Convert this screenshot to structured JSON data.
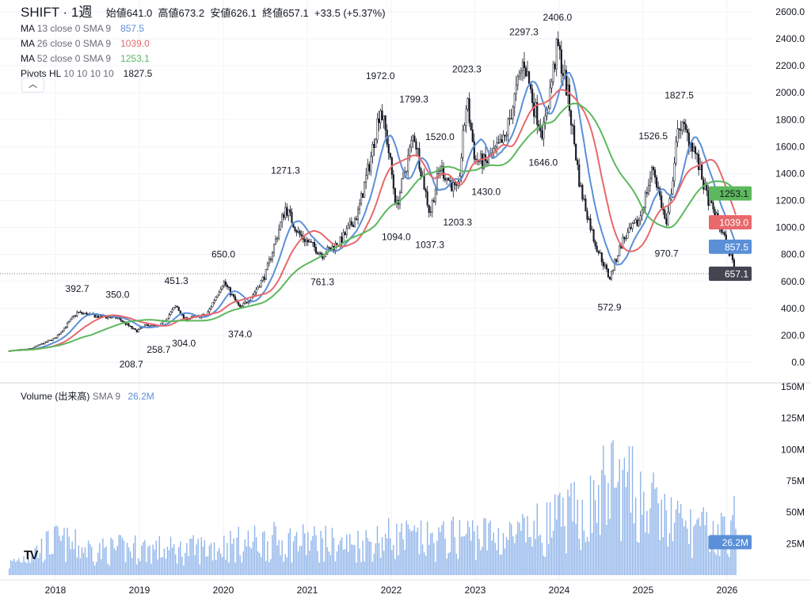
{
  "header": {
    "symbol": "SHIFT",
    "interval": "1週",
    "open_label": "始値",
    "open": "641.0",
    "high_label": "高値",
    "high": "673.2",
    "low_label": "安値",
    "low": "626.1",
    "close_label": "終値",
    "close": "657.1",
    "change": "+33.5 (+5.37%)"
  },
  "indicators": [
    {
      "name": "MA",
      "params": "13 close 0 SMA 9",
      "value": "857.5",
      "color": "#5b8fd8"
    },
    {
      "name": "MA",
      "params": "26 close 0 SMA 9",
      "value": "1039.0",
      "color": "#e8686b"
    },
    {
      "name": "MA",
      "params": "52 close 0 SMA 9",
      "value": "1253.1",
      "color": "#5cb85c"
    },
    {
      "name": "Pivots HL",
      "params": "10 10 10 10",
      "value": "1827.5",
      "color": "#131722"
    }
  ],
  "collapse_icon": "chevron-up-icon",
  "volume_legend": {
    "name": "Volume",
    "params": "(出来高)",
    "sma": "SMA 9",
    "value": "26.2M"
  },
  "logo": "TV",
  "chart_data": {
    "type": "candlestick",
    "price_axis": {
      "ticks": [
        "0.0",
        "200.0",
        "400.0",
        "600.0",
        "800.0",
        "1000.0",
        "1200.0",
        "1400.0",
        "1600.0",
        "1800.0",
        "2000.0",
        "2200.0",
        "2400.0",
        "2600.0"
      ],
      "range": [
        0,
        2600
      ]
    },
    "volume_axis": {
      "ticks": [
        "25M",
        "50M",
        "75M",
        "100M",
        "125M",
        "150M"
      ],
      "range": [
        0,
        150
      ]
    },
    "time_axis": [
      "2018",
      "2019",
      "2020",
      "2021",
      "2022",
      "2023",
      "2024",
      "2025",
      "2026"
    ],
    "last_price": "657.1",
    "badges": [
      {
        "value": "1253.1",
        "color": "#5cb85c"
      },
      {
        "value": "1039.0",
        "color": "#e8686b"
      },
      {
        "value": "857.5",
        "color": "#5b8fd8"
      },
      {
        "value": "657.1",
        "color": "#434651"
      },
      {
        "value": "26.2M",
        "color": "#5b8fd8"
      }
    ],
    "close_path": [
      [
        2017.45,
        85
      ],
      [
        2017.7,
        100
      ],
      [
        2018.0,
        180
      ],
      [
        2018.26,
        370
      ],
      [
        2018.5,
        340
      ],
      [
        2018.74,
        330
      ],
      [
        2018.96,
        230
      ],
      [
        2019.1,
        280
      ],
      [
        2019.23,
        260
      ],
      [
        2019.44,
        420
      ],
      [
        2019.53,
        320
      ],
      [
        2019.8,
        350
      ],
      [
        2020.0,
        600
      ],
      [
        2020.2,
        400
      ],
      [
        2020.35,
        500
      ],
      [
        2020.5,
        650
      ],
      [
        2020.74,
        1150
      ],
      [
        2020.9,
        950
      ],
      [
        2021.18,
        800
      ],
      [
        2021.4,
        900
      ],
      [
        2021.6,
        1100
      ],
      [
        2021.75,
        1500
      ],
      [
        2021.87,
        1900
      ],
      [
        2021.95,
        1650
      ],
      [
        2022.06,
        1150
      ],
      [
        2022.27,
        1700
      ],
      [
        2022.46,
        1100
      ],
      [
        2022.58,
        1450
      ],
      [
        2022.79,
        1250
      ],
      [
        2022.9,
        1950
      ],
      [
        2023.0,
        1500
      ],
      [
        2023.13,
        1480
      ],
      [
        2023.35,
        1650
      ],
      [
        2023.58,
        2250
      ],
      [
        2023.7,
        1900
      ],
      [
        2023.81,
        1700
      ],
      [
        2023.98,
        2350
      ],
      [
        2024.1,
        2000
      ],
      [
        2024.25,
        1300
      ],
      [
        2024.42,
        900
      ],
      [
        2024.6,
        620
      ],
      [
        2024.75,
        900
      ],
      [
        2024.95,
        1050
      ],
      [
        2025.12,
        1450
      ],
      [
        2025.28,
        1000
      ],
      [
        2025.43,
        1780
      ],
      [
        2025.6,
        1600
      ],
      [
        2025.75,
        1250
      ],
      [
        2025.95,
        950
      ],
      [
        2026.12,
        657
      ]
    ],
    "volume_path_m": [
      [
        2017.45,
        8
      ],
      [
        2018.0,
        25
      ],
      [
        2018.5,
        18
      ],
      [
        2019.0,
        20
      ],
      [
        2019.5,
        18
      ],
      [
        2020.0,
        22
      ],
      [
        2020.5,
        25
      ],
      [
        2021.0,
        25
      ],
      [
        2021.5,
        22
      ],
      [
        2022.0,
        28
      ],
      [
        2022.5,
        25
      ],
      [
        2022.9,
        30
      ],
      [
        2023.5,
        28
      ],
      [
        2024.0,
        40
      ],
      [
        2024.4,
        50
      ],
      [
        2024.6,
        70
      ],
      [
        2024.9,
        60
      ],
      [
        2025.2,
        45
      ],
      [
        2025.5,
        35
      ],
      [
        2025.9,
        30
      ],
      [
        2026.12,
        40
      ]
    ],
    "pivots": [
      {
        "label": "392.7",
        "date": 2018.26,
        "price": 392.7,
        "type": "high"
      },
      {
        "label": "350.0",
        "date": 2018.74,
        "price": 350.0,
        "type": "high"
      },
      {
        "label": "208.7",
        "date": 2018.96,
        "price": 208.7,
        "type": "low"
      },
      {
        "label": "258.7",
        "date": 2019.23,
        "price": 258.7,
        "type": "low"
      },
      {
        "label": "451.3",
        "date": 2019.44,
        "price": 451.3,
        "type": "high"
      },
      {
        "label": "304.0",
        "date": 2019.53,
        "price": 304.0,
        "type": "low"
      },
      {
        "label": "650.0",
        "date": 2020.0,
        "price": 650.0,
        "type": "high"
      },
      {
        "label": "374.0",
        "date": 2020.2,
        "price": 374.0,
        "type": "low"
      },
      {
        "label": "1271.3",
        "date": 2020.74,
        "price": 1271.3,
        "type": "high"
      },
      {
        "label": "761.3",
        "date": 2021.18,
        "price": 761.3,
        "type": "low"
      },
      {
        "label": "1972.0",
        "date": 2021.87,
        "price": 1972.0,
        "type": "high"
      },
      {
        "label": "1094.0",
        "date": 2022.06,
        "price": 1094.0,
        "type": "low"
      },
      {
        "label": "1799.3",
        "date": 2022.27,
        "price": 1799.3,
        "type": "high"
      },
      {
        "label": "1037.3",
        "date": 2022.46,
        "price": 1037.3,
        "type": "low"
      },
      {
        "label": "1520.0",
        "date": 2022.58,
        "price": 1520.0,
        "type": "high"
      },
      {
        "label": "1203.3",
        "date": 2022.79,
        "price": 1203.3,
        "type": "low"
      },
      {
        "label": "2023.3",
        "date": 2022.9,
        "price": 2023.3,
        "type": "high"
      },
      {
        "label": "1430.0",
        "date": 2023.13,
        "price": 1430.0,
        "type": "low"
      },
      {
        "label": "2297.3",
        "date": 2023.58,
        "price": 2297.3,
        "type": "high"
      },
      {
        "label": "1646.0",
        "date": 2023.81,
        "price": 1646.0,
        "type": "low"
      },
      {
        "label": "2406.0",
        "date": 2023.98,
        "price": 2406.0,
        "type": "high"
      },
      {
        "label": "572.9",
        "date": 2024.6,
        "price": 572.9,
        "type": "low"
      },
      {
        "label": "1526.5",
        "date": 2025.12,
        "price": 1526.5,
        "type": "high"
      },
      {
        "label": "970.7",
        "date": 2025.28,
        "price": 970.7,
        "type": "low"
      },
      {
        "label": "1827.5",
        "date": 2025.43,
        "price": 1827.5,
        "type": "high"
      }
    ],
    "moving_averages": [
      13,
      26,
      52
    ]
  }
}
